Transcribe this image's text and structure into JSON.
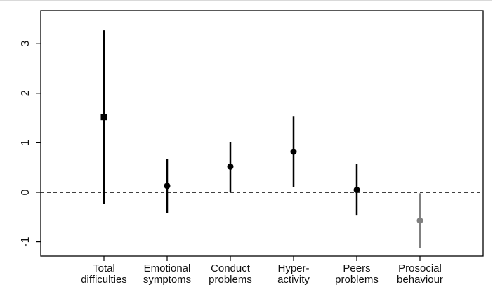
{
  "chart_data": {
    "type": "errorbar",
    "title": "",
    "xlabel": "",
    "ylabel": "",
    "ylim": [
      -1.3,
      3.35
    ],
    "y_ticks": [
      -1,
      0,
      1,
      2,
      3
    ],
    "y_tick_labels": [
      "-1",
      "0",
      "1",
      "2",
      "3"
    ],
    "grid": false,
    "reference_line": {
      "y": 0,
      "style": "dashed"
    },
    "categories": [
      [
        "Total",
        "difficulties"
      ],
      [
        "Emotional",
        "symptoms"
      ],
      [
        "Conduct",
        "problems"
      ],
      [
        "Hyper-",
        "activity"
      ],
      [
        "Peers",
        "problems"
      ],
      [
        "Prosocial",
        "behaviour"
      ]
    ],
    "series": [
      {
        "estimates": [
          1.52,
          0.13,
          0.52,
          0.82,
          0.05,
          -0.57
        ],
        "lower": [
          -0.23,
          -0.42,
          0.01,
          0.1,
          -0.47,
          -1.13
        ],
        "upper": [
          3.27,
          0.68,
          1.02,
          1.54,
          0.57,
          -0.02
        ],
        "markers": [
          "square",
          "circle",
          "circle",
          "circle",
          "circle",
          "circle"
        ],
        "colors": [
          "#000000",
          "#000000",
          "#000000",
          "#000000",
          "#000000",
          "#808080"
        ]
      }
    ]
  }
}
